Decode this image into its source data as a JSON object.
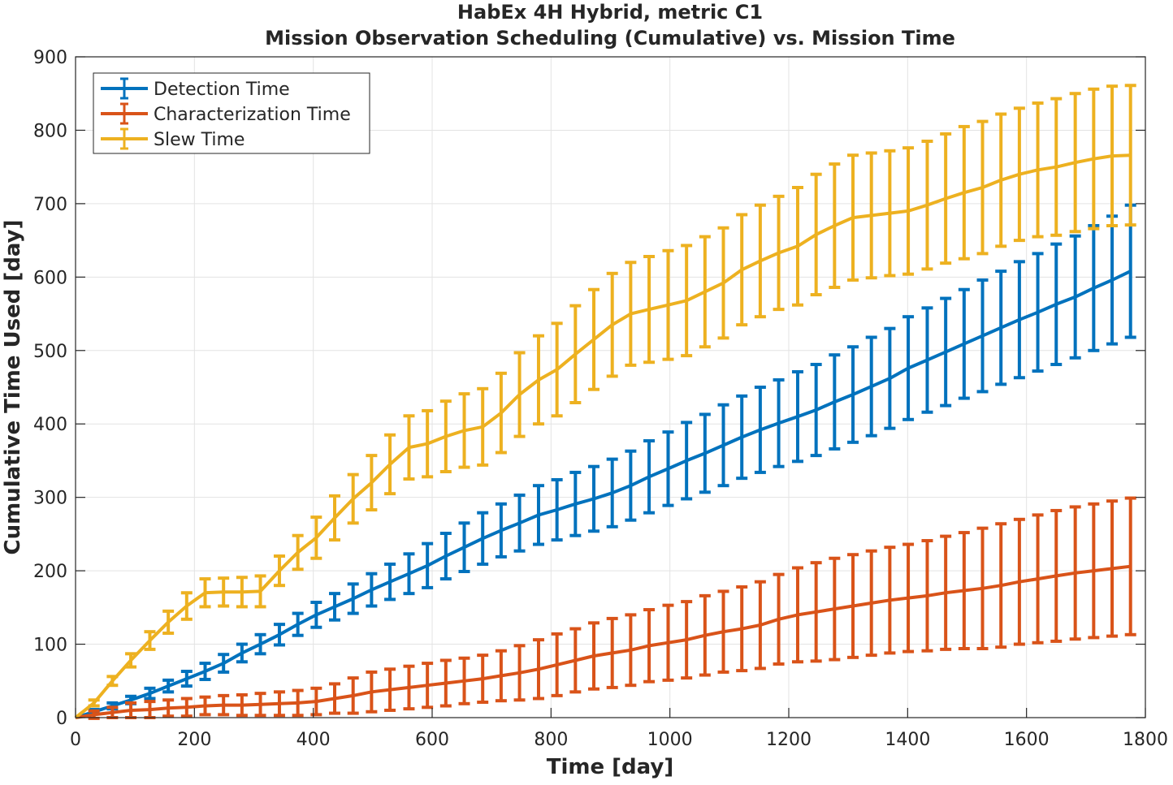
{
  "chart_data": {
    "type": "line",
    "title": [
      "HabEx 4H Hybrid, metric C1",
      "Mission Observation Scheduling (Cumulative) vs. Mission Time"
    ],
    "xlabel": "Time [day]",
    "ylabel": "Cumulative Time Used [day]",
    "xlim": [
      0,
      1800
    ],
    "ylim": [
      0,
      900
    ],
    "xticks": [
      "0",
      "200",
      "400",
      "600",
      "800",
      "1000",
      "1200",
      "1400",
      "1600",
      "1800"
    ],
    "yticks": [
      "0",
      "100",
      "200",
      "300",
      "400",
      "500",
      "600",
      "700",
      "800",
      "900"
    ],
    "grid": true,
    "legend_position": "top-left",
    "x": [
      0,
      31,
      62,
      93,
      125,
      156,
      187,
      218,
      249,
      280,
      311,
      343,
      374,
      405,
      436,
      467,
      498,
      529,
      561,
      592,
      623,
      654,
      685,
      716,
      747,
      779,
      810,
      841,
      872,
      903,
      934,
      965,
      997,
      1028,
      1059,
      1090,
      1121,
      1152,
      1183,
      1215,
      1246,
      1277,
      1308,
      1339,
      1370,
      1401,
      1433,
      1464,
      1495,
      1526,
      1557,
      1588,
      1619,
      1650,
      1682,
      1713,
      1744,
      1775
    ],
    "series": [
      {
        "name": "Detection Time",
        "color": "#0072BD",
        "values": [
          0,
          8,
          16,
          24,
          33,
          43,
          53,
          63,
          74,
          88,
          100,
          113,
          127,
          140,
          151,
          162,
          174,
          185,
          196,
          207,
          220,
          232,
          244,
          255,
          265,
          276,
          283,
          291,
          298,
          306,
          316,
          328,
          339,
          350,
          360,
          371,
          382,
          392,
          401,
          410,
          419,
          430,
          440,
          451,
          462,
          476,
          487,
          498,
          509,
          520,
          531,
          542,
          552,
          563,
          573,
          585,
          596,
          608
        ],
        "error": [
          0,
          3,
          4,
          5,
          7,
          8,
          10,
          11,
          12,
          12,
          13,
          14,
          15,
          17,
          18,
          20,
          22,
          24,
          27,
          30,
          31,
          33,
          35,
          36,
          38,
          40,
          41,
          43,
          44,
          46,
          47,
          49,
          50,
          52,
          53,
          55,
          56,
          58,
          59,
          61,
          62,
          64,
          65,
          67,
          68,
          70,
          71,
          73,
          74,
          76,
          77,
          79,
          80,
          82,
          83,
          85,
          87,
          90
        ]
      },
      {
        "name": "Characterization Time",
        "color": "#D95319",
        "values": [
          0,
          4,
          7,
          10,
          11,
          13,
          14,
          16,
          17,
          17,
          18,
          19,
          20,
          22,
          26,
          30,
          35,
          38,
          41,
          44,
          47,
          50,
          53,
          57,
          61,
          66,
          72,
          78,
          84,
          88,
          92,
          98,
          102,
          106,
          112,
          117,
          121,
          126,
          134,
          140,
          144,
          148,
          152,
          156,
          160,
          163,
          166,
          170,
          173,
          176,
          180,
          185,
          189,
          193,
          197,
          200,
          203,
          206
        ],
        "error": [
          0,
          5,
          7,
          10,
          11,
          11,
          12,
          12,
          13,
          14,
          15,
          16,
          17,
          18,
          20,
          24,
          27,
          28,
          29,
          30,
          31,
          31,
          32,
          34,
          37,
          40,
          42,
          43,
          45,
          47,
          48,
          49,
          51,
          52,
          54,
          55,
          57,
          59,
          61,
          64,
          67,
          69,
          70,
          71,
          72,
          73,
          75,
          77,
          79,
          82,
          84,
          85,
          87,
          89,
          90,
          91,
          92,
          93
        ]
      },
      {
        "name": "Slew Time",
        "color": "#EDB120",
        "values": [
          0,
          20,
          50,
          78,
          105,
          130,
          152,
          170,
          171,
          171,
          172,
          200,
          225,
          245,
          272,
          298,
          320,
          345,
          368,
          373,
          383,
          391,
          396,
          415,
          440,
          460,
          474,
          495,
          515,
          535,
          550,
          556,
          562,
          568,
          580,
          592,
          610,
          622,
          633,
          642,
          658,
          670,
          681,
          684,
          687,
          690,
          698,
          707,
          715,
          722,
          732,
          740,
          746,
          750,
          756,
          761,
          765,
          766
        ],
        "error": [
          0,
          4,
          6,
          9,
          12,
          15,
          18,
          19,
          19,
          20,
          21,
          20,
          23,
          28,
          30,
          33,
          37,
          40,
          43,
          45,
          48,
          50,
          52,
          54,
          57,
          60,
          63,
          66,
          68,
          70,
          70,
          72,
          74,
          75,
          75,
          75,
          75,
          76,
          77,
          80,
          82,
          84,
          85,
          85,
          85,
          86,
          87,
          88,
          90,
          90,
          90,
          90,
          91,
          93,
          94,
          95,
          95,
          95
        ]
      }
    ]
  }
}
